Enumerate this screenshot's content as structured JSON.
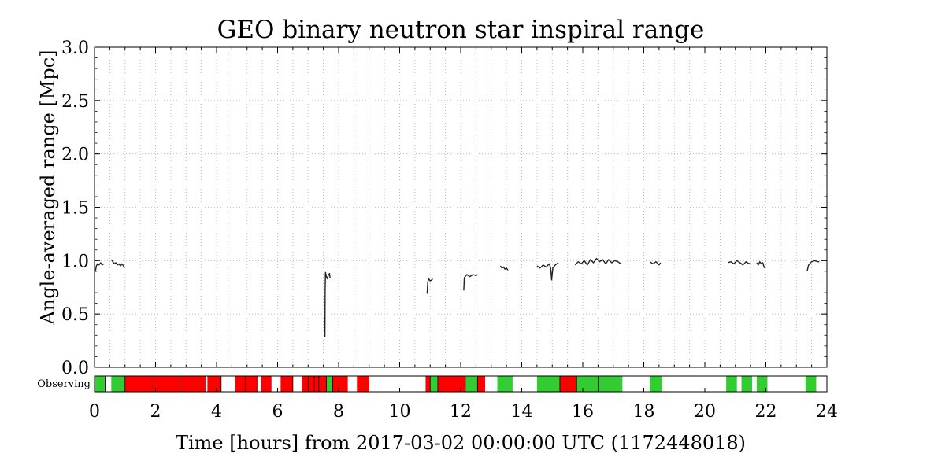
{
  "chart_data": {
    "type": "line",
    "title": "GEO binary neutron star inspiral range",
    "xlabel": "Time [hours] from 2017-03-02 00:00:00 UTC (1172448018)",
    "ylabel": "Angle-averaged range [Mpc]",
    "xlim": [
      0,
      24
    ],
    "ylim": [
      0,
      3.0
    ],
    "xticks": [
      "0",
      "2",
      "4",
      "6",
      "8",
      "10",
      "12",
      "14",
      "16",
      "18",
      "20",
      "22",
      "24"
    ],
    "yticks": [
      "0.0",
      "0.5",
      "1.0",
      "1.5",
      "2.0",
      "2.5",
      "3.0"
    ],
    "grid": true,
    "series": [
      {
        "color": "#222222",
        "segments": [
          [
            [
              0.0,
              0.92
            ],
            [
              0.03,
              0.9
            ],
            [
              0.06,
              0.95
            ],
            [
              0.1,
              0.97
            ],
            [
              0.15,
              0.96
            ],
            [
              0.2,
              0.98
            ],
            [
              0.25,
              0.96
            ],
            [
              0.3,
              0.97
            ]
          ],
          [
            [
              0.55,
              1.01
            ],
            [
              0.6,
              0.99
            ],
            [
              0.65,
              0.97
            ],
            [
              0.7,
              0.98
            ],
            [
              0.75,
              0.96
            ],
            [
              0.8,
              0.97
            ],
            [
              0.85,
              0.95
            ],
            [
              0.9,
              0.97
            ],
            [
              0.95,
              0.95
            ],
            [
              0.98,
              0.93
            ]
          ],
          [
            [
              7.55,
              0.28
            ],
            [
              7.56,
              0.72
            ],
            [
              7.57,
              0.89
            ],
            [
              7.6,
              0.85
            ],
            [
              7.63,
              0.83
            ],
            [
              7.66,
              0.86
            ],
            [
              7.7,
              0.88
            ],
            [
              7.72,
              0.84
            ]
          ],
          [
            [
              10.9,
              0.69
            ],
            [
              10.92,
              0.8
            ],
            [
              10.95,
              0.83
            ],
            [
              11.0,
              0.81
            ],
            [
              11.05,
              0.82
            ],
            [
              11.08,
              0.83
            ]
          ],
          [
            [
              12.1,
              0.72
            ],
            [
              12.12,
              0.84
            ],
            [
              12.2,
              0.87
            ],
            [
              12.3,
              0.85
            ],
            [
              12.4,
              0.87
            ],
            [
              12.5,
              0.86
            ],
            [
              12.55,
              0.87
            ]
          ],
          [
            [
              13.3,
              0.95
            ],
            [
              13.35,
              0.93
            ],
            [
              13.4,
              0.94
            ],
            [
              13.45,
              0.92
            ],
            [
              13.5,
              0.93
            ],
            [
              13.55,
              0.91
            ]
          ],
          [
            [
              14.5,
              0.95
            ],
            [
              14.6,
              0.93
            ],
            [
              14.7,
              0.96
            ],
            [
              14.8,
              0.94
            ],
            [
              14.9,
              0.97
            ],
            [
              14.95,
              0.93
            ],
            [
              14.98,
              0.82
            ],
            [
              15.02,
              0.93
            ],
            [
              15.1,
              0.96
            ],
            [
              15.2,
              0.98
            ]
          ],
          [
            [
              15.75,
              0.96
            ],
            [
              15.85,
              0.99
            ],
            [
              15.95,
              0.97
            ],
            [
              16.05,
              1.0
            ],
            [
              16.15,
              0.96
            ],
            [
              16.25,
              1.01
            ],
            [
              16.35,
              0.98
            ],
            [
              16.45,
              1.02
            ],
            [
              16.55,
              0.99
            ],
            [
              16.65,
              1.01
            ],
            [
              16.75,
              0.97
            ],
            [
              16.85,
              1.01
            ],
            [
              16.95,
              0.98
            ],
            [
              17.05,
              1.0
            ],
            [
              17.15,
              0.99
            ],
            [
              17.25,
              0.97
            ]
          ],
          [
            [
              18.2,
              0.99
            ],
            [
              18.3,
              0.97
            ],
            [
              18.4,
              0.99
            ],
            [
              18.5,
              0.96
            ],
            [
              18.55,
              0.98
            ]
          ],
          [
            [
              20.75,
              0.98
            ],
            [
              20.85,
              0.99
            ],
            [
              20.95,
              0.97
            ],
            [
              21.05,
              1.0
            ],
            [
              21.15,
              0.98
            ],
            [
              21.25,
              0.96
            ],
            [
              21.35,
              0.99
            ],
            [
              21.45,
              0.97
            ],
            [
              21.5,
              0.98
            ]
          ],
          [
            [
              21.7,
              0.98
            ],
            [
              21.75,
              0.96
            ],
            [
              21.8,
              0.99
            ],
            [
              21.85,
              0.97
            ],
            [
              21.9,
              0.98
            ],
            [
              21.95,
              0.93
            ]
          ],
          [
            [
              23.35,
              0.9
            ],
            [
              23.4,
              0.96
            ],
            [
              23.5,
              0.99
            ],
            [
              23.6,
              1.0
            ],
            [
              23.7,
              0.99
            ],
            [
              23.75,
              0.99
            ]
          ]
        ]
      }
    ],
    "segment_bar": {
      "label": "Observing",
      "colors": {
        "green": "#33cc33",
        "red": "#ff0000"
      },
      "segments": [
        [
          0.0,
          0.35,
          "green"
        ],
        [
          0.55,
          1.0,
          "green"
        ],
        [
          1.0,
          3.65,
          "red"
        ],
        [
          3.7,
          4.15,
          "red"
        ],
        [
          4.6,
          4.95,
          "red"
        ],
        [
          4.95,
          5.35,
          "red"
        ],
        [
          5.45,
          5.8,
          "red"
        ],
        [
          6.1,
          6.5,
          "red"
        ],
        [
          6.8,
          7.6,
          "red"
        ],
        [
          7.6,
          7.8,
          "green"
        ],
        [
          7.8,
          8.3,
          "red"
        ],
        [
          8.6,
          9.0,
          "red"
        ],
        [
          10.85,
          11.0,
          "red"
        ],
        [
          11.0,
          11.25,
          "green"
        ],
        [
          11.25,
          12.15,
          "red"
        ],
        [
          12.15,
          12.55,
          "green"
        ],
        [
          12.55,
          12.8,
          "red"
        ],
        [
          13.2,
          13.7,
          "green"
        ],
        [
          14.5,
          15.25,
          "green"
        ],
        [
          15.25,
          15.8,
          "red"
        ],
        [
          15.8,
          17.3,
          "green"
        ],
        [
          18.2,
          18.6,
          "green"
        ],
        [
          20.7,
          21.05,
          "green"
        ],
        [
          21.2,
          21.55,
          "green"
        ],
        [
          21.7,
          22.05,
          "green"
        ],
        [
          23.3,
          23.65,
          "green"
        ]
      ],
      "dividers": [
        0.35,
        1.0,
        1.95,
        2.8,
        3.65,
        4.15,
        4.95,
        5.35,
        6.5,
        7.0,
        7.2,
        7.35,
        7.6,
        7.8,
        11.0,
        11.25,
        12.15,
        12.55,
        15.25,
        15.8,
        16.5
      ]
    }
  }
}
